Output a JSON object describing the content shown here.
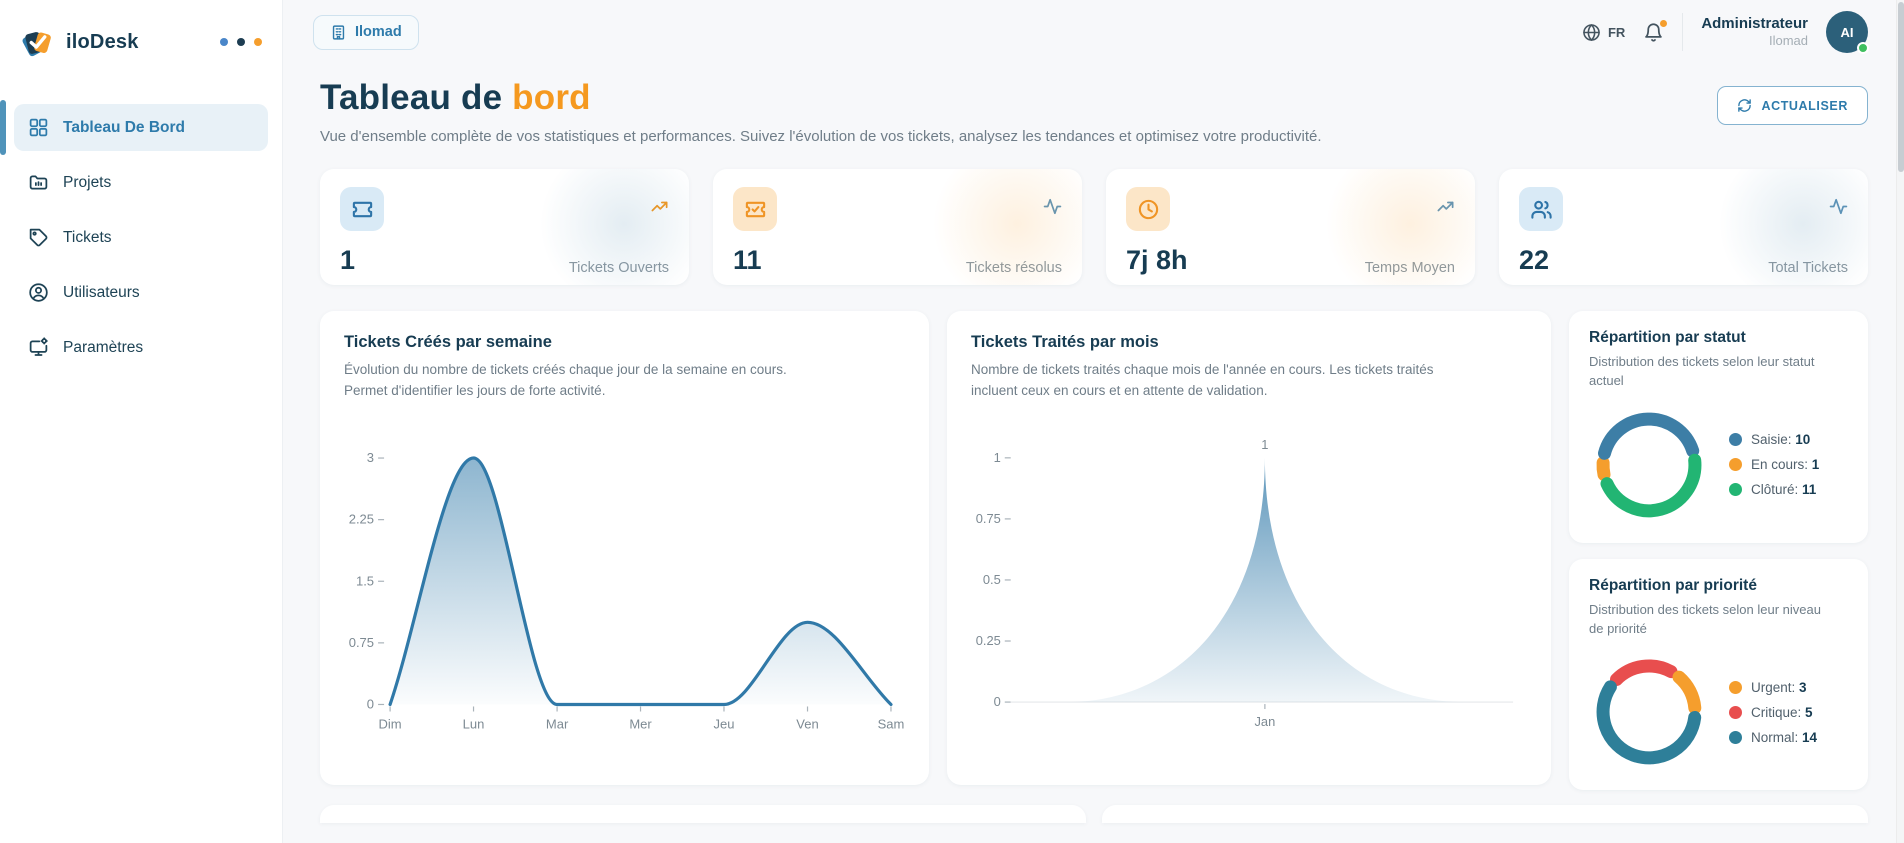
{
  "app": {
    "name": "iloDesk"
  },
  "sidebar": {
    "items": [
      {
        "label": "Tableau De Bord",
        "active": true
      },
      {
        "label": "Projets",
        "active": false
      },
      {
        "label": "Tickets",
        "active": false
      },
      {
        "label": "Utilisateurs",
        "active": false
      },
      {
        "label": "Paramètres",
        "active": false
      }
    ]
  },
  "topbar": {
    "org_badge": "Ilomad",
    "language": "FR",
    "notification_badge": true,
    "user": {
      "name": "Administrateur",
      "org": "Ilomad",
      "initials": "AI",
      "status_color": "#3fbf5f"
    }
  },
  "header": {
    "title_prefix": "Tableau de",
    "title_accent": "bord",
    "subtitle": "Vue d'ensemble complète de vos statistiques et performances. Suivez l'évolution de vos tickets, analysez les tendances et optimisez votre productivité.",
    "refresh_label": "ACTUALISER"
  },
  "stats": [
    {
      "value": "1",
      "label": "Tickets Ouverts",
      "icon": "ticket-icon",
      "icon_color": "#2e74a8",
      "trend_icon": "trending-up-icon",
      "trend_color": "#f5991f"
    },
    {
      "value": "11",
      "label": "Tickets résolus",
      "icon": "ticket-check-icon",
      "icon_color": "#ef9425",
      "trend_icon": "activity-icon",
      "trend_color": "#5e94b8"
    },
    {
      "value": "7j 8h",
      "label": "Temps Moyen",
      "icon": "clock-icon",
      "icon_color": "#ef9425",
      "trend_icon": "trending-up-icon",
      "trend_color": "#5e94b8"
    },
    {
      "value": "22",
      "label": "Total Tickets",
      "icon": "users-icon",
      "icon_color": "#2e74a8",
      "trend_icon": "activity-icon",
      "trend_color": "#5e94b8"
    }
  ],
  "chart_data": [
    {
      "id": "weekly",
      "type": "area",
      "title": "Tickets Créés par semaine",
      "description": "Évolution du nombre de tickets créés chaque jour de la semaine en cours. Permet d'identifier les jours de forte activité.",
      "categories": [
        "Dim",
        "Lun",
        "Mar",
        "Mer",
        "Jeu",
        "Ven",
        "Sam"
      ],
      "values": [
        0,
        3,
        0,
        0,
        0,
        1,
        0
      ],
      "y_ticks": [
        0,
        0.75,
        1.5,
        2.25,
        3
      ],
      "ylim": [
        0,
        3
      ],
      "grid": false,
      "line_color": "#3079a8",
      "fill_from": "rgba(48,121,168,0.55)",
      "fill_to": "rgba(48,121,168,0.02)"
    },
    {
      "id": "monthly",
      "type": "area-spike",
      "title": "Tickets Traités par mois",
      "description": "Nombre de tickets traités chaque mois de l'année en cours. Les tickets traités incluent ceux en cours et en attente de validation.",
      "categories": [
        "Jan"
      ],
      "values": [
        1
      ],
      "point_label": "1",
      "y_ticks": [
        0,
        0.25,
        0.5,
        0.75,
        1
      ],
      "ylim": [
        0,
        1
      ],
      "grid": false,
      "fill_from": "rgba(48,121,168,0.78)",
      "fill_to": "rgba(48,121,168,0.07)"
    },
    {
      "id": "status",
      "type": "donut",
      "title": "Répartition par statut",
      "description": "Distribution des tickets selon leur statut actuel",
      "legend_position": "right",
      "start": 258,
      "order": [
        1,
        0,
        2
      ],
      "gap": 12,
      "segments": [
        {
          "label": "Saisie",
          "value": 10,
          "color": "#3d7ea6"
        },
        {
          "label": "En cours",
          "value": 1,
          "color": "#f59e2d"
        },
        {
          "label": "Clôturé",
          "value": 11,
          "color": "#22b573"
        }
      ]
    },
    {
      "id": "priority",
      "type": "donut",
      "title": "Répartition par priorité",
      "description": "Distribution des tickets selon leur niveau de priorité",
      "legend_position": "right",
      "start": 315,
      "order": [
        1,
        0,
        2
      ],
      "gap": 12,
      "segments": [
        {
          "label": "Urgent",
          "value": 3,
          "color": "#f59e2d"
        },
        {
          "label": "Critique",
          "value": 5,
          "color": "#e84e4e"
        },
        {
          "label": "Normal",
          "value": 14,
          "color": "#2e7f99"
        }
      ]
    }
  ]
}
